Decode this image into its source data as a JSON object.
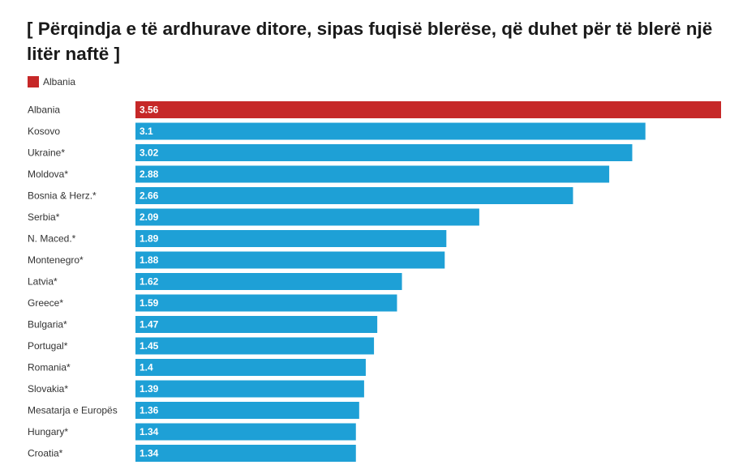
{
  "chart_data": {
    "type": "bar",
    "orientation": "horizontal",
    "title": "[ Përqindja e të ardhurave ditore, sipas fuqisë blerëse, që duhet për të blerë një litër naftë ]",
    "legend": [
      {
        "name": "Albania",
        "color": "#c62828"
      }
    ],
    "legend_placement": "top-left",
    "categories": [
      "Albania",
      "Kosovo",
      "Ukraine*",
      "Moldova*",
      "Bosnia & Herz.*",
      "Serbia*",
      "N. Maced.*",
      "Montenegro*",
      "Latvia*",
      "Greece*",
      "Bulgaria*",
      "Portugal*",
      "Romania*",
      "Slovakia*",
      "Mesatarja e Europës",
      "Hungary*",
      "Croatia*"
    ],
    "values": [
      3.56,
      3.1,
      3.02,
      2.88,
      2.66,
      2.09,
      1.89,
      1.88,
      1.62,
      1.59,
      1.47,
      1.45,
      1.4,
      1.39,
      1.36,
      1.34,
      1.34
    ],
    "value_labels": [
      "3.56",
      "3.1",
      "3.02",
      "2.88",
      "2.66",
      "2.09",
      "1.89",
      "1.88",
      "1.62",
      "1.59",
      "1.47",
      "1.45",
      "1.4",
      "1.39",
      "1.36",
      "1.34",
      "1.34"
    ],
    "highlight_category": "Albania",
    "colors": {
      "highlight": "#c62828",
      "default": "#1ea0d6"
    },
    "xlim": [
      0,
      3.56
    ],
    "grid": false
  }
}
